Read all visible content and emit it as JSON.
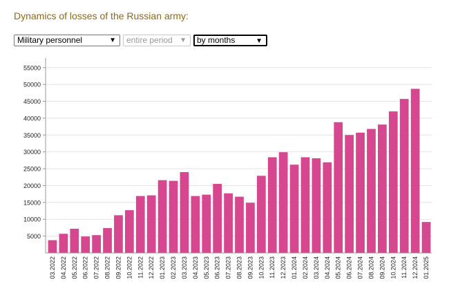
{
  "title": "Dynamics of losses of the Russian army:",
  "controls": {
    "category_select": "Military personnel",
    "period_select": "entire period",
    "grouping_select": "by months"
  },
  "chart_data": {
    "type": "bar",
    "title": "",
    "xlabel": "",
    "ylabel": "",
    "ylim": [
      0,
      57000
    ],
    "yticks": [
      5000,
      10000,
      15000,
      20000,
      25000,
      30000,
      35000,
      40000,
      45000,
      50000,
      55000
    ],
    "bar_color": "#d6478f",
    "grid": true,
    "categories": [
      "03.2022",
      "04.2022",
      "05.2022",
      "06.2022",
      "07.2022",
      "08.2022",
      "09.2022",
      "10.2022",
      "11.2022",
      "12.2022",
      "01.2023",
      "02.2023",
      "03.2023",
      "04.2023",
      "05.2023",
      "06.2023",
      "07.2023",
      "08.2023",
      "09.2023",
      "10.2023",
      "11.2023",
      "12.2023",
      "01.2024",
      "02.2024",
      "03.2024",
      "04.2024",
      "05.2024",
      "06.2024",
      "07.2024",
      "08.2024",
      "09.2024",
      "10.2024",
      "11.2024",
      "12.2024",
      "01.2025"
    ],
    "values": [
      3800,
      5700,
      7200,
      4900,
      5300,
      7400,
      11200,
      12700,
      16900,
      17100,
      21600,
      21400,
      24000,
      16900,
      17300,
      20500,
      17700,
      16700,
      14900,
      22900,
      28400,
      29900,
      26200,
      28400,
      28100,
      26900,
      38800,
      35000,
      35700,
      36800,
      38100,
      42000,
      45700,
      48700,
      9200
    ]
  }
}
